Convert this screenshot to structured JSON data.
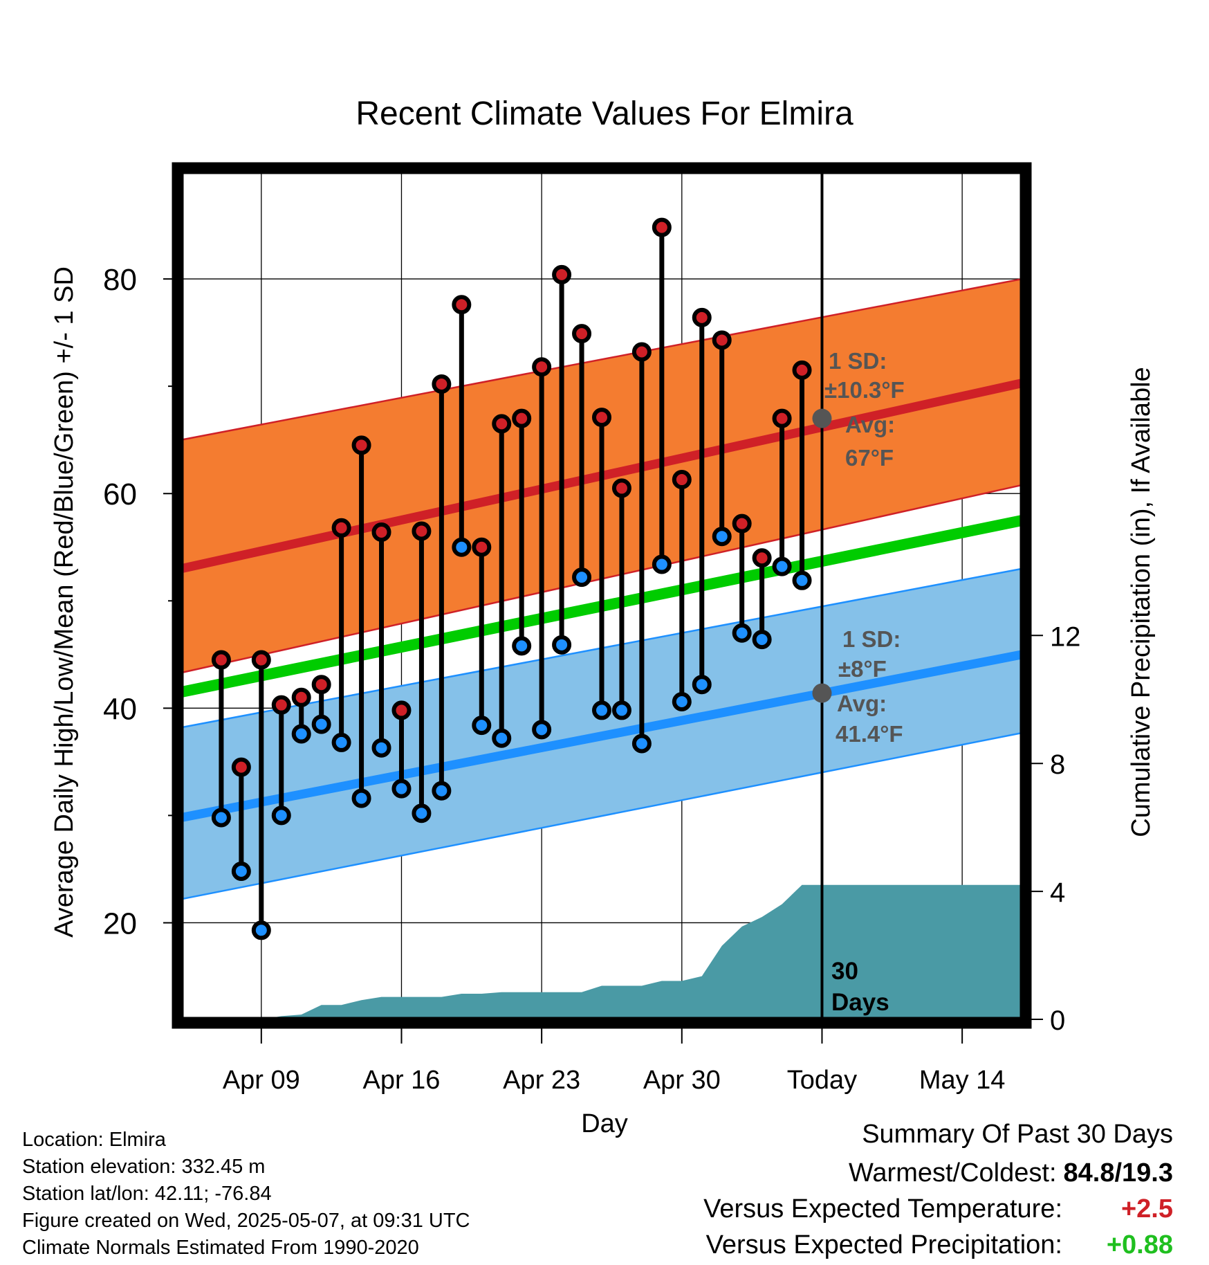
{
  "chart_data": {
    "type": "line",
    "title": "Recent Climate Values For Elmira",
    "xlabel": "Day",
    "ylabel": "Average Daily High/Low/Mean (Red/Blue/Green) +/- 1 SD",
    "y2label": "Cumulative Precipitation (in), If Available",
    "xlim": [
      "2025-04-05",
      "2025-05-17"
    ],
    "ylim": [
      11,
      90
    ],
    "y2lim": [
      0,
      26.5
    ],
    "x_ticks": [
      "Apr 09",
      "Apr 16",
      "Apr 23",
      "Apr 30",
      "Today",
      "May 14"
    ],
    "y_ticks": [
      20,
      40,
      60,
      80
    ],
    "y2_ticks": [
      0,
      4,
      8,
      12
    ],
    "grid": true,
    "today": "2025-05-07",
    "today_label": "30 Days",
    "colors": {
      "high": "#cf2027",
      "low": "#1e90ff",
      "mean": "#00cc00",
      "high_band": "#f47c30",
      "low_band": "#85c1e9",
      "precip": "#4a9aa5",
      "annotation": "#555555"
    },
    "normals": {
      "x": [
        "2025-04-05",
        "2025-05-17"
      ],
      "high": [
        53.0,
        70.3
      ],
      "high_sd_upper": [
        65.0,
        80.0
      ],
      "high_sd_lower": [
        43.3,
        60.8
      ],
      "low": [
        29.8,
        45.0
      ],
      "low_sd_upper": [
        38.2,
        53.0
      ],
      "low_sd_lower": [
        22.2,
        37.7
      ],
      "mean": [
        41.5,
        57.5
      ]
    },
    "series": [
      {
        "name": "Daily High",
        "x": [
          "2025-04-07",
          "2025-04-08",
          "2025-04-09",
          "2025-04-10",
          "2025-04-11",
          "2025-04-12",
          "2025-04-13",
          "2025-04-14",
          "2025-04-15",
          "2025-04-16",
          "2025-04-17",
          "2025-04-18",
          "2025-04-19",
          "2025-04-20",
          "2025-04-21",
          "2025-04-22",
          "2025-04-23",
          "2025-04-24",
          "2025-04-25",
          "2025-04-26",
          "2025-04-27",
          "2025-04-28",
          "2025-04-29",
          "2025-04-30",
          "2025-05-01",
          "2025-05-02",
          "2025-05-03",
          "2025-05-04",
          "2025-05-05",
          "2025-05-06"
        ],
        "values": [
          44.5,
          34.5,
          44.5,
          40.3,
          41.0,
          42.2,
          56.8,
          64.5,
          56.4,
          39.8,
          56.5,
          70.2,
          77.6,
          55.0,
          66.5,
          67.0,
          71.8,
          80.4,
          74.9,
          67.1,
          60.5,
          73.2,
          84.8,
          61.3,
          76.4,
          74.3,
          57.2,
          54.0,
          67.0,
          71.5
        ]
      },
      {
        "name": "Daily Low",
        "x": [
          "2025-04-07",
          "2025-04-08",
          "2025-04-09",
          "2025-04-10",
          "2025-04-11",
          "2025-04-12",
          "2025-04-13",
          "2025-04-14",
          "2025-04-15",
          "2025-04-16",
          "2025-04-17",
          "2025-04-18",
          "2025-04-19",
          "2025-04-20",
          "2025-04-21",
          "2025-04-22",
          "2025-04-23",
          "2025-04-24",
          "2025-04-25",
          "2025-04-26",
          "2025-04-27",
          "2025-04-28",
          "2025-04-29",
          "2025-04-30",
          "2025-05-01",
          "2025-05-02",
          "2025-05-03",
          "2025-05-04",
          "2025-05-05",
          "2025-05-06"
        ],
        "values": [
          29.8,
          24.8,
          19.3,
          30.0,
          37.6,
          38.5,
          36.8,
          31.6,
          36.3,
          32.5,
          30.2,
          32.3,
          55.0,
          38.4,
          37.2,
          45.8,
          38.0,
          45.9,
          52.2,
          39.8,
          39.8,
          36.7,
          53.4,
          40.6,
          42.2,
          56.0,
          47.0,
          46.4,
          53.2,
          51.9
        ]
      }
    ],
    "precipitation": {
      "x": [
        "2025-04-05",
        "2025-04-06",
        "2025-04-07",
        "2025-04-08",
        "2025-04-09",
        "2025-04-10",
        "2025-04-11",
        "2025-04-12",
        "2025-04-13",
        "2025-04-14",
        "2025-04-15",
        "2025-04-16",
        "2025-04-17",
        "2025-04-18",
        "2025-04-19",
        "2025-04-20",
        "2025-04-21",
        "2025-04-22",
        "2025-04-23",
        "2025-04-24",
        "2025-04-25",
        "2025-04-26",
        "2025-04-27",
        "2025-04-28",
        "2025-04-29",
        "2025-04-30",
        "2025-05-01",
        "2025-05-02",
        "2025-05-03",
        "2025-05-04",
        "2025-05-05",
        "2025-05-06",
        "2025-05-07",
        "2025-05-17"
      ],
      "values": [
        0,
        0,
        0,
        0,
        0.0,
        0.1,
        0.15,
        0.45,
        0.45,
        0.6,
        0.7,
        0.7,
        0.7,
        0.7,
        0.8,
        0.8,
        0.85,
        0.85,
        0.85,
        0.85,
        0.85,
        1.05,
        1.05,
        1.05,
        1.2,
        1.2,
        1.35,
        2.3,
        2.9,
        3.2,
        3.6,
        4.2,
        4.2,
        4.2
      ]
    },
    "annotations": {
      "high_sd": "1 SD:",
      "high_sd_value": "±10.3°F",
      "high_avg": "Avg:",
      "high_avg_value": "67°F",
      "high_avg_point": 67,
      "low_sd": "1 SD:",
      "low_sd_value": "±8°F",
      "low_avg": "Avg:",
      "low_avg_value": "41.4°F",
      "low_avg_point": 41.4
    }
  },
  "info": {
    "location": "Location: Elmira",
    "elevation": "Station elevation: 332.45 m",
    "latlon": "Station lat/lon: 42.11; -76.84",
    "created": "Figure created on Wed, 2025-05-07, at 09:31 UTC",
    "normals": "Climate Normals Estimated From 1990-2020"
  },
  "summary": {
    "title": "Summary Of Past 30 Days",
    "warmest_label": "Warmest/Coldest:",
    "warmest_value": "84.8/19.3",
    "temp_label": "Versus Expected Temperature:",
    "temp_value": "+2.5",
    "temp_color": "#cf2027",
    "precip_label": "Versus Expected Precipitation:",
    "precip_value": "+0.88",
    "precip_color": "#1fbf1f"
  }
}
